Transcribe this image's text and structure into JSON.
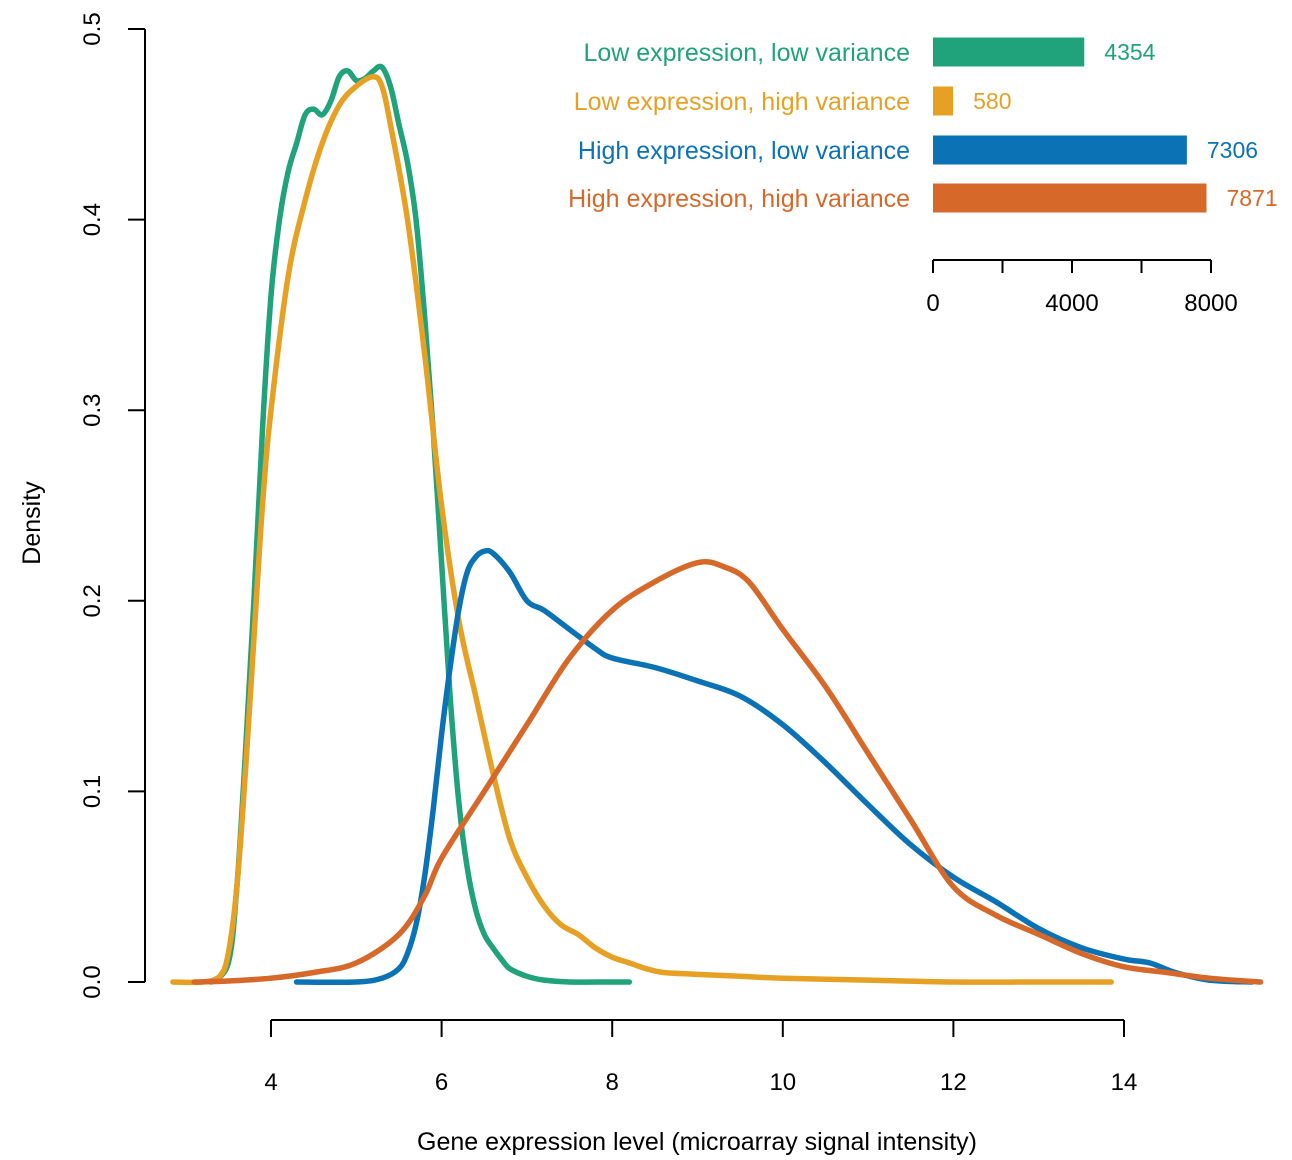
{
  "chart_data": [
    {
      "type": "line",
      "subtype": "density",
      "xlabel": "Gene expression level (microarray signal intensity)",
      "ylabel": "Density",
      "xlim": [
        2.8,
        15.7
      ],
      "ylim": [
        0,
        0.5
      ],
      "x_ticks": [
        4,
        6,
        8,
        10,
        12,
        14
      ],
      "y_ticks": [
        0.0,
        0.1,
        0.2,
        0.3,
        0.4,
        0.5
      ],
      "x_tick_labels": [
        "4",
        "6",
        "8",
        "10",
        "12",
        "14"
      ],
      "y_tick_labels": [
        "0.0",
        "0.1",
        "0.2",
        "0.3",
        "0.4",
        "0.5"
      ],
      "grid": false,
      "series": [
        {
          "name": "Low expression, low variance",
          "color": "#20a27a",
          "x": [
            3.3,
            3.5,
            3.6,
            3.7,
            3.8,
            3.9,
            4.0,
            4.1,
            4.2,
            4.3,
            4.4,
            4.5,
            4.6,
            4.7,
            4.8,
            4.9,
            5.0,
            5.1,
            5.2,
            5.3,
            5.4,
            5.5,
            5.6,
            5.7,
            5.8,
            5.9,
            6.0,
            6.1,
            6.2,
            6.3,
            6.4,
            6.5,
            6.6,
            6.7,
            6.8,
            7.0,
            7.2,
            7.5,
            8.0,
            8.2
          ],
          "y": [
            0.0,
            0.01,
            0.05,
            0.12,
            0.2,
            0.29,
            0.36,
            0.4,
            0.425,
            0.44,
            0.455,
            0.458,
            0.455,
            0.462,
            0.475,
            0.478,
            0.473,
            0.474,
            0.478,
            0.48,
            0.47,
            0.45,
            0.43,
            0.4,
            0.35,
            0.29,
            0.22,
            0.15,
            0.095,
            0.06,
            0.038,
            0.025,
            0.018,
            0.012,
            0.007,
            0.003,
            0.001,
            0.0,
            0.0,
            0.0
          ]
        },
        {
          "name": "Low expression, high variance",
          "color": "#e6a124",
          "x": [
            2.85,
            3.2,
            3.4,
            3.5,
            3.6,
            3.7,
            3.8,
            3.9,
            4.0,
            4.2,
            4.4,
            4.6,
            4.8,
            5.0,
            5.2,
            5.3,
            5.4,
            5.6,
            5.8,
            6.0,
            6.2,
            6.4,
            6.6,
            6.8,
            7.0,
            7.2,
            7.4,
            7.6,
            7.8,
            8.0,
            8.2,
            8.4,
            8.6,
            9.0,
            9.5,
            10.0,
            11.0,
            12.0,
            13.0,
            13.85
          ],
          "y": [
            0.0,
            0.0,
            0.003,
            0.015,
            0.05,
            0.11,
            0.18,
            0.25,
            0.3,
            0.37,
            0.41,
            0.44,
            0.46,
            0.47,
            0.475,
            0.47,
            0.45,
            0.4,
            0.33,
            0.25,
            0.19,
            0.15,
            0.11,
            0.075,
            0.055,
            0.04,
            0.03,
            0.025,
            0.018,
            0.013,
            0.01,
            0.007,
            0.005,
            0.004,
            0.003,
            0.002,
            0.001,
            0.0,
            0.0,
            0.0
          ]
        },
        {
          "name": "High expression, low variance",
          "color": "#0b72b5",
          "x": [
            4.3,
            5.0,
            5.3,
            5.5,
            5.6,
            5.7,
            5.8,
            5.9,
            6.0,
            6.1,
            6.2,
            6.3,
            6.4,
            6.5,
            6.6,
            6.8,
            7.0,
            7.2,
            7.5,
            7.8,
            8.0,
            8.5,
            9.0,
            9.5,
            10.0,
            10.5,
            11.0,
            11.5,
            12.0,
            12.5,
            13.0,
            13.5,
            14.0,
            14.3,
            14.6,
            15.0,
            15.5
          ],
          "y": [
            0.0,
            0.0,
            0.002,
            0.007,
            0.015,
            0.03,
            0.055,
            0.09,
            0.13,
            0.165,
            0.195,
            0.215,
            0.223,
            0.226,
            0.225,
            0.215,
            0.2,
            0.195,
            0.185,
            0.175,
            0.17,
            0.165,
            0.158,
            0.15,
            0.135,
            0.115,
            0.093,
            0.072,
            0.055,
            0.042,
            0.028,
            0.018,
            0.012,
            0.01,
            0.005,
            0.001,
            0.0
          ]
        },
        {
          "name": "High expression, high variance",
          "color": "#d6692a",
          "x": [
            3.1,
            3.5,
            4.0,
            4.5,
            5.0,
            5.5,
            5.8,
            6.0,
            6.5,
            7.0,
            7.5,
            8.0,
            8.5,
            9.0,
            9.3,
            9.6,
            10.0,
            10.5,
            11.0,
            11.5,
            12.0,
            12.5,
            13.0,
            13.5,
            14.0,
            14.5,
            15.0,
            15.6
          ],
          "y": [
            0.0,
            0.0005,
            0.002,
            0.005,
            0.01,
            0.025,
            0.045,
            0.065,
            0.1,
            0.135,
            0.17,
            0.195,
            0.21,
            0.22,
            0.218,
            0.21,
            0.185,
            0.155,
            0.12,
            0.085,
            0.05,
            0.035,
            0.025,
            0.015,
            0.008,
            0.005,
            0.002,
            0.0
          ]
        }
      ]
    },
    {
      "type": "bar",
      "orientation": "horizontal",
      "categories": [
        "Low expression, low variance",
        "Low expression, high variance",
        "High expression, low variance",
        "High expression, high variance"
      ],
      "values": [
        4354,
        580,
        7306,
        7871
      ],
      "value_labels": [
        "4354",
        "580",
        "7306",
        "7871"
      ],
      "colors": [
        "#20a27a",
        "#e6a124",
        "#0b72b5",
        "#d6692a"
      ],
      "xlim": [
        0,
        8000
      ],
      "x_ticks": [
        0,
        2000,
        4000,
        6000,
        8000
      ],
      "x_tick_labels": [
        "0",
        "",
        "4000",
        "",
        "8000"
      ],
      "legend_placement": "top-right"
    }
  ]
}
